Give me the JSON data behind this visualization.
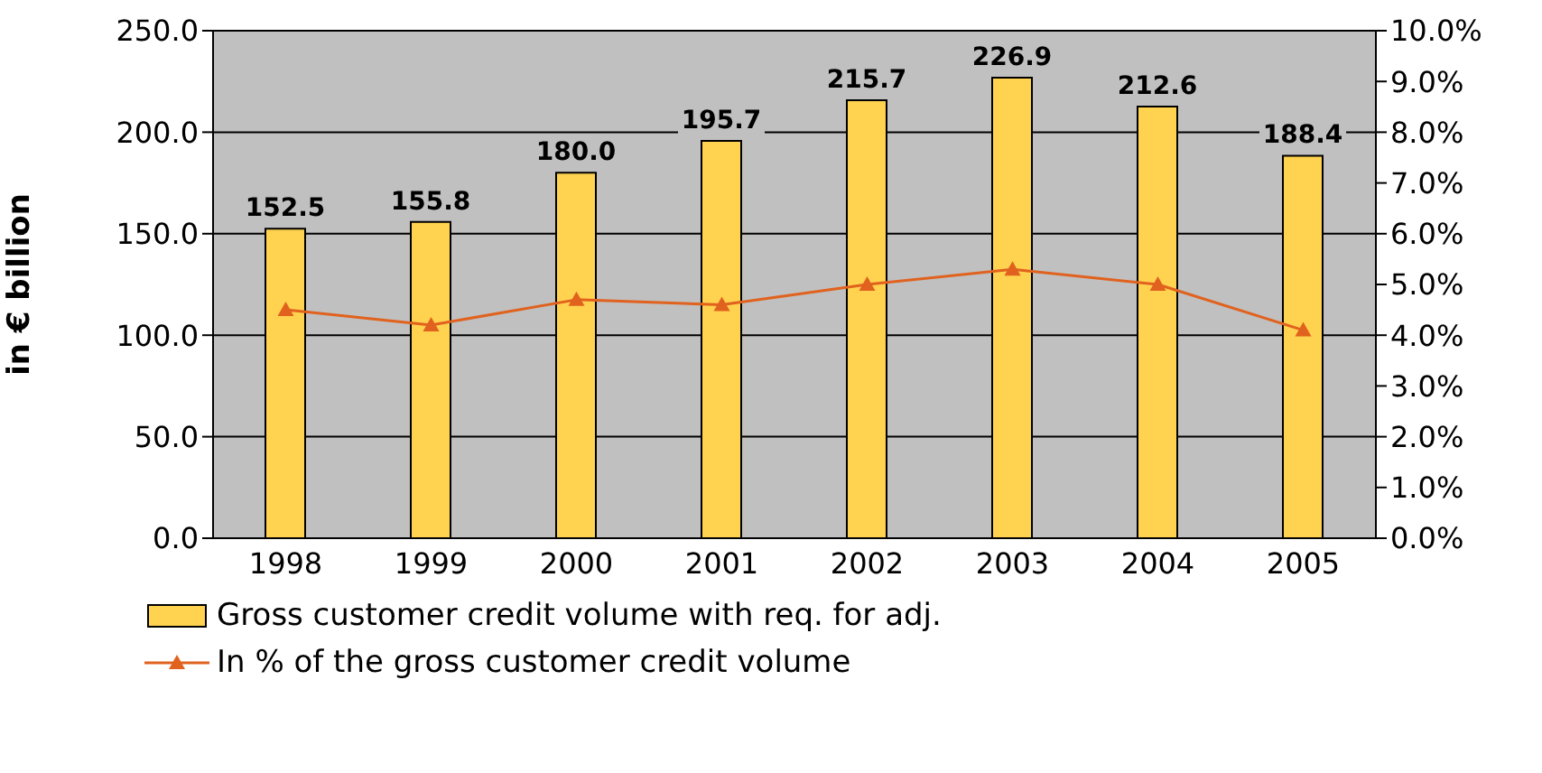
{
  "chart_data": {
    "type": "bar",
    "categories": [
      "1998",
      "1999",
      "2000",
      "2001",
      "2002",
      "2003",
      "2004",
      "2005"
    ],
    "ylabel": "in € billion",
    "ylim": [
      0,
      250
    ],
    "yticks": [
      {
        "value": 0,
        "label": "0.0"
      },
      {
        "value": 50,
        "label": "50.0"
      },
      {
        "value": 100,
        "label": "100.0"
      },
      {
        "value": 150,
        "label": "150.0"
      },
      {
        "value": 200,
        "label": "200.0"
      },
      {
        "value": 250,
        "label": "250.0"
      }
    ],
    "y2lim": [
      0,
      10
    ],
    "y2ticks": [
      {
        "value": 0,
        "label": "0.0%"
      },
      {
        "value": 1,
        "label": "1.0%"
      },
      {
        "value": 2,
        "label": "2.0%"
      },
      {
        "value": 3,
        "label": "3.0%"
      },
      {
        "value": 4,
        "label": "4.0%"
      },
      {
        "value": 5,
        "label": "5.0%"
      },
      {
        "value": 6,
        "label": "6.0%"
      },
      {
        "value": 7,
        "label": "7.0%"
      },
      {
        "value": 8,
        "label": "8.0%"
      },
      {
        "value": 9,
        "label": "9.0%"
      },
      {
        "value": 10,
        "label": "10.0%"
      }
    ],
    "grid": "y",
    "legend": "bottom",
    "series": [
      {
        "name": "Gross customer credit volume with req. for adj.",
        "color": "#ffd24f",
        "values": [
          152.5,
          155.8,
          180.0,
          195.7,
          215.7,
          226.9,
          212.6,
          188.4
        ],
        "value_labels": [
          "152.5",
          "155.8",
          "180.0",
          "195.7",
          "215.7",
          "226.9",
          "212.6",
          "188.4"
        ]
      },
      {
        "name": "In % of the gross customer credit volume",
        "type": "line",
        "axis": "y2",
        "color": "#e0621e",
        "marker": "triangle",
        "values": [
          4.5,
          4.2,
          4.7,
          4.6,
          5.0,
          5.3,
          5.0,
          4.1
        ]
      }
    ]
  }
}
